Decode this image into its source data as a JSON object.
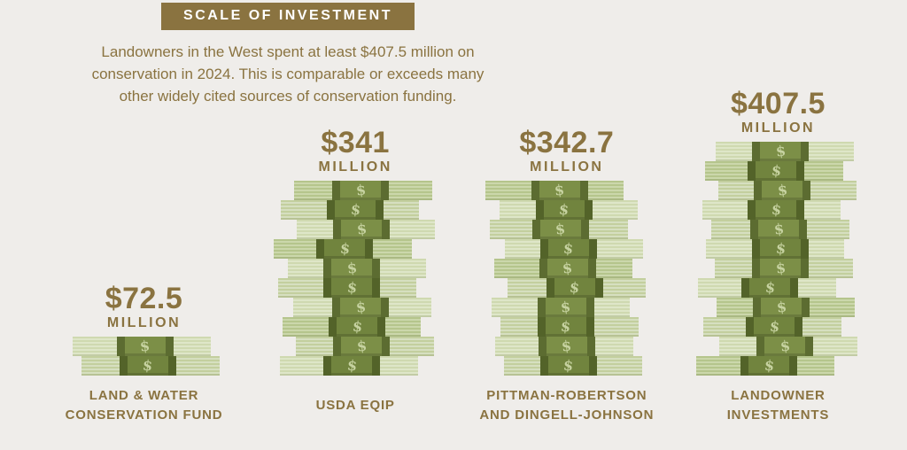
{
  "page": {
    "background": "#efedea",
    "accent": "#8a7340"
  },
  "header": {
    "title": "SCALE OF INVESTMENT",
    "title_bg": "#8a7340",
    "title_color": "#ffffff",
    "subtitle": "Landowners in the West spent at least $407.5 million on\nconservation in 2024. This is comparable or exceeds many\nother widely cited sources of conservation funding."
  },
  "chart_data": {
    "type": "bar",
    "variant": "pictograph-money-stacks",
    "title": "SCALE OF INVESTMENT",
    "unit": "USD millions",
    "categories": [
      "Land & Water Conservation Fund",
      "USDA EQIP",
      "Pittman-Robertson and Dingell-Johnson",
      "Landowner Investments"
    ],
    "values": [
      72.5,
      341,
      342.7,
      407.5
    ],
    "value_labels": [
      "$72.5",
      "$341",
      "$342.7",
      "$407.5"
    ],
    "unit_label": "MILLION",
    "category_labels": [
      "LAND & WATER\nCONSERVATION FUND",
      "USDA EQIP",
      "PITTMAN-ROBERTSON\nAND DINGELL-JOHNSON",
      "LANDOWNER\nINVESTMENTS"
    ],
    "bill_counts": [
      2,
      10,
      10,
      12
    ],
    "bill_value_millions": 34,
    "legend": "none",
    "grid": false,
    "colors": {
      "bill_light": "#cfd9b0",
      "bill_light_stripe": "#dee6c8",
      "bill_mid": "#c3cf9e",
      "bill_mid_stripe": "#d6dfc0",
      "bill_dark": "#b5c58c",
      "bill_dark_stripe": "#cbd7ab",
      "strap": "#7c8f47",
      "strap_edge": "#5c6c31",
      "strap_alt": "#71843e",
      "strap_alt_edge": "#536329",
      "dollar_sign": "#c6d2a0"
    }
  }
}
